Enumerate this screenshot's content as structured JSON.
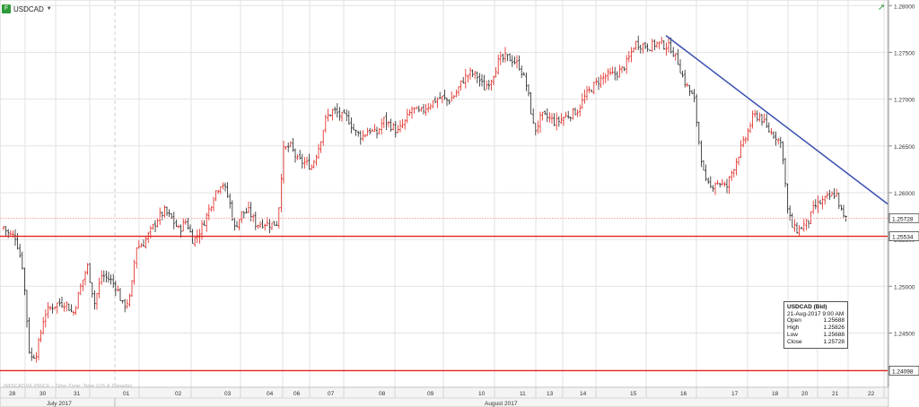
{
  "instrument": {
    "symbol": "USDCAD"
  },
  "chart_data": {
    "type": "candlestick",
    "interval": "hourly",
    "y_axis": {
      "ticks": [
        "1.28000",
        "1.27500",
        "1.27000",
        "1.26500",
        "1.26000",
        "1.25500",
        "1.25000",
        "1.24500"
      ],
      "ylim": [
        1.2392,
        1.2806
      ]
    },
    "x_axis": {
      "day_labels": [
        "28",
        "30",
        "31",
        "01",
        "02",
        "03",
        "04",
        "06",
        "07",
        "08",
        "09",
        "10",
        "11",
        "13",
        "14",
        "15",
        "16",
        "17",
        "18",
        "20",
        "21",
        "22"
      ],
      "month_labels": [
        "July 2017",
        "August 2017"
      ]
    },
    "price_markers": [
      {
        "label": "1.25728",
        "value": 1.25728,
        "color": "#f4a0a0",
        "style": "dotted"
      },
      {
        "label": "1.25534",
        "value": 1.25534,
        "color": "#e0221c",
        "style": "solid"
      },
      {
        "label": "1.24098",
        "value": 1.24098,
        "color": "#e0221c",
        "style": "solid"
      }
    ],
    "trendline": {
      "from": {
        "x": "15 Aug",
        "y": 1.2768
      },
      "to": {
        "x": "22 Aug",
        "y": 1.2588
      },
      "color": "#3a50b0"
    },
    "path": [
      [
        0,
        1.2544
      ],
      [
        5,
        1.2566
      ],
      [
        12,
        1.2556
      ],
      [
        20,
        1.2553
      ],
      [
        28,
        1.252
      ],
      [
        36,
        1.2422
      ],
      [
        44,
        1.243
      ],
      [
        52,
        1.247
      ],
      [
        60,
        1.2478
      ],
      [
        68,
        1.2482
      ],
      [
        76,
        1.2482
      ],
      [
        84,
        1.247
      ],
      [
        92,
        1.2498
      ],
      [
        100,
        1.2522
      ],
      [
        108,
        1.2482
      ],
      [
        116,
        1.2512
      ],
      [
        124,
        1.2508
      ],
      [
        132,
        1.25
      ],
      [
        140,
        1.2478
      ],
      [
        148,
        1.2488
      ],
      [
        154,
        1.2542
      ],
      [
        162,
        1.2545
      ],
      [
        170,
        1.2558
      ],
      [
        178,
        1.2572
      ],
      [
        186,
        1.258
      ],
      [
        194,
        1.2572
      ],
      [
        202,
        1.256
      ],
      [
        210,
        1.257
      ],
      [
        218,
        1.2548
      ],
      [
        226,
        1.256
      ],
      [
        234,
        1.2578
      ],
      [
        242,
        1.26
      ],
      [
        250,
        1.2612
      ],
      [
        258,
        1.2592
      ],
      [
        264,
        1.2562
      ],
      [
        272,
        1.2578
      ],
      [
        280,
        1.258
      ],
      [
        288,
        1.2566
      ],
      [
        296,
        1.2568
      ],
      [
        304,
        1.2566
      ],
      [
        312,
        1.2568
      ],
      [
        318,
        1.2645
      ],
      [
        326,
        1.265
      ],
      [
        334,
        1.2635
      ],
      [
        342,
        1.2632
      ],
      [
        350,
        1.2628
      ],
      [
        358,
        1.265
      ],
      [
        366,
        1.268
      ],
      [
        374,
        1.2688
      ],
      [
        382,
        1.2682
      ],
      [
        390,
        1.268
      ],
      [
        398,
        1.2665
      ],
      [
        406,
        1.266
      ],
      [
        414,
        1.2668
      ],
      [
        422,
        1.2662
      ],
      [
        430,
        1.2678
      ],
      [
        438,
        1.2672
      ],
      [
        446,
        1.2665
      ],
      [
        454,
        1.2676
      ],
      [
        462,
        1.269
      ],
      [
        470,
        1.2685
      ],
      [
        478,
        1.2692
      ],
      [
        486,
        1.2698
      ],
      [
        494,
        1.2702
      ],
      [
        502,
        1.2698
      ],
      [
        510,
        1.2705
      ],
      [
        518,
        1.272
      ],
      [
        526,
        1.2728
      ],
      [
        534,
        1.2725
      ],
      [
        542,
        1.2712
      ],
      [
        550,
        1.2722
      ],
      [
        558,
        1.274
      ],
      [
        566,
        1.2745
      ],
      [
        574,
        1.2742
      ],
      [
        582,
        1.2735
      ],
      [
        590,
        1.2712
      ],
      [
        598,
        1.2665
      ],
      [
        606,
        1.2682
      ],
      [
        614,
        1.268
      ],
      [
        622,
        1.2675
      ],
      [
        630,
        1.268
      ],
      [
        638,
        1.2684
      ],
      [
        646,
        1.2688
      ],
      [
        654,
        1.2702
      ],
      [
        662,
        1.2712
      ],
      [
        670,
        1.272
      ],
      [
        678,
        1.2725
      ],
      [
        686,
        1.2726
      ],
      [
        694,
        1.273
      ],
      [
        702,
        1.274
      ],
      [
        710,
        1.276
      ],
      [
        718,
        1.2758
      ],
      [
        726,
        1.2756
      ],
      [
        734,
        1.276
      ],
      [
        742,
        1.2758
      ],
      [
        750,
        1.2755
      ],
      [
        758,
        1.274
      ],
      [
        764,
        1.2722
      ],
      [
        770,
        1.271
      ],
      [
        776,
        1.27
      ],
      [
        782,
        1.265
      ],
      [
        788,
        1.2612
      ],
      [
        794,
        1.2605
      ],
      [
        800,
        1.2612
      ],
      [
        806,
        1.261
      ],
      [
        812,
        1.2605
      ],
      [
        818,
        1.2622
      ],
      [
        826,
        1.2642
      ],
      [
        834,
        1.266
      ],
      [
        842,
        1.2682
      ],
      [
        850,
        1.2682
      ],
      [
        856,
        1.267
      ],
      [
        862,
        1.2664
      ],
      [
        868,
        1.266
      ],
      [
        874,
        1.265
      ],
      [
        880,
        1.2582
      ],
      [
        886,
        1.2562
      ],
      [
        892,
        1.256
      ],
      [
        898,
        1.2565
      ],
      [
        904,
        1.257
      ],
      [
        910,
        1.2585
      ],
      [
        918,
        1.259
      ],
      [
        926,
        1.2595
      ],
      [
        934,
        1.26
      ],
      [
        940,
        1.258
      ],
      [
        943,
        1.2572
      ]
    ],
    "ohlc_tooltip": {
      "title": "USDCAD (Bid)",
      "time": "21-Aug-2017 9:00 AM",
      "rows": [
        {
          "label": "Open",
          "value": "1.25688"
        },
        {
          "label": "High",
          "value": "1.25826"
        },
        {
          "label": "Low",
          "value": "1.25688"
        },
        {
          "label": "Close",
          "value": "1.25728"
        }
      ]
    },
    "colors": {
      "up": "#e0221c",
      "down": "#222222",
      "grid": "#e2e2e2",
      "trendline": "#3a50b0"
    }
  },
  "source_note": "INDICATIVE PRICE - Time Zone: Time (US & Canada)"
}
